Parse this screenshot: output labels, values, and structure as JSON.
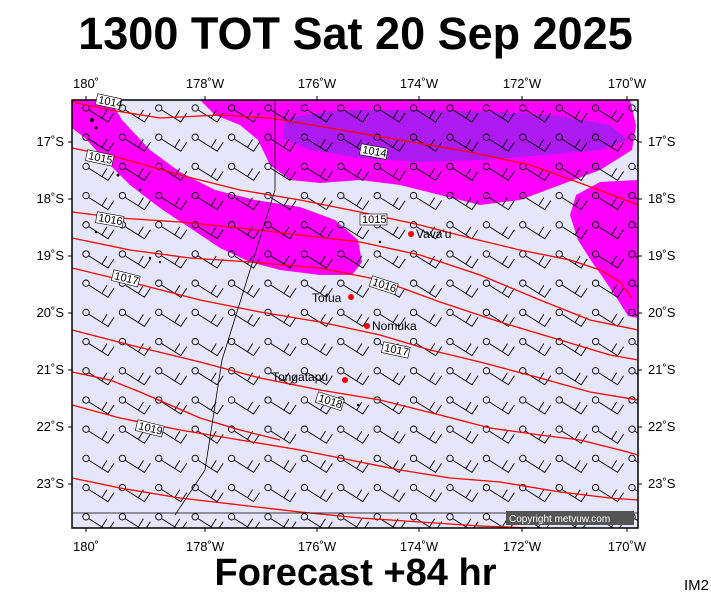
{
  "title": "1300 TOT Sat 20 Sep 2025",
  "subtitle": "Forecast +84 hr",
  "corner_code": "IM2",
  "copyright": "Copyright metvuw.com",
  "colors": {
    "ocean": "#e6e6fa",
    "isobar": "#ff0000",
    "rain_light": "#ff00ff",
    "rain_heavy": "#a020f0",
    "place_dot": "#ff0000"
  },
  "longitude_labels": [
    "180˚",
    "178˚W",
    "176˚W",
    "174˚W",
    "172˚W",
    "170˚W"
  ],
  "latitude_labels": [
    "17˚S",
    "18˚S",
    "19˚S",
    "20˚S",
    "21˚S",
    "22˚S",
    "23˚S"
  ],
  "isobar_labels": [
    "1014",
    "1015",
    "1016",
    "1017",
    "1018",
    "1019"
  ],
  "places": [
    {
      "name": "Vava'u",
      "lon": -174.0,
      "lat": -18.65
    },
    {
      "name": "Tofua",
      "lon": -175.1,
      "lat": -19.75
    },
    {
      "name": "Nomuka",
      "lon": -174.8,
      "lat": -20.25
    },
    {
      "name": "Tongatapu",
      "lon": -175.2,
      "lat": -21.15
    }
  ],
  "map_extent": {
    "lon_range": [
      179.8,
      -169.8
    ],
    "lat_range": [
      -16.25,
      -23.55
    ]
  }
}
